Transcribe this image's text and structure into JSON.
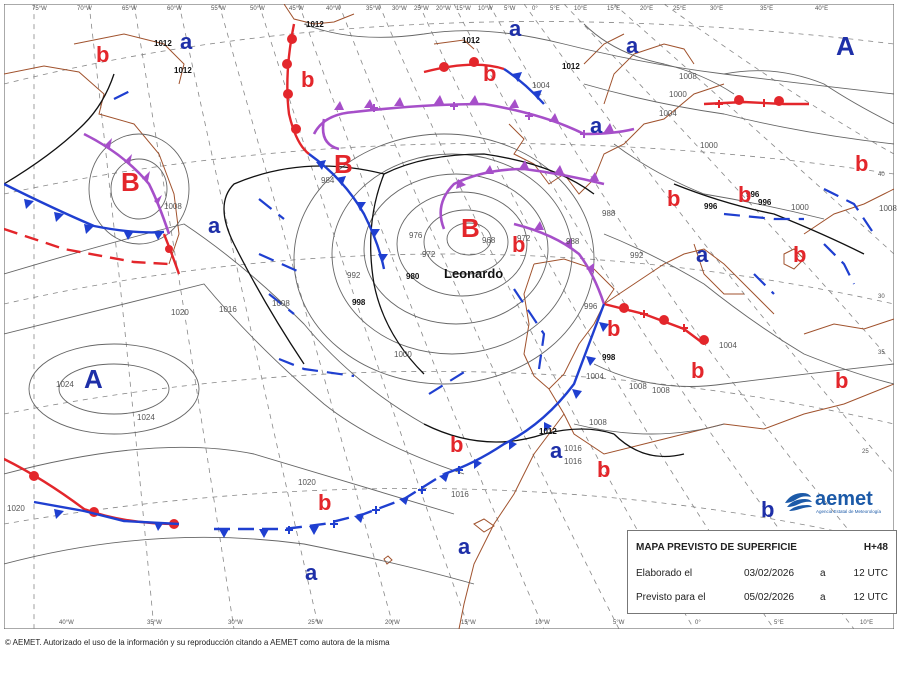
{
  "grid_labels": {
    "top": [
      "75°W",
      "70°W",
      "65°W",
      "60°W",
      "55°W",
      "50°W",
      "45°W",
      "40°W",
      "35°W",
      "30°W",
      "25°W",
      "20°W",
      "15°W",
      "10°W",
      "5°W",
      "0°",
      "5°E",
      "10°E",
      "15°E",
      "20°E",
      "25°E",
      "30°E",
      "35°E",
      "40°E"
    ],
    "bottom": [
      "40°W",
      "35°W",
      "30°W",
      "25°W",
      "20°W",
      "15°W",
      "10°W",
      "5°W",
      "0°",
      "5°E",
      "10°E"
    ],
    "right": [
      "40",
      "35",
      "30",
      "25"
    ]
  },
  "isobars": [
    "1012",
    "1012",
    "1012",
    "1012",
    "1012",
    "1004",
    "1008",
    "1000",
    "1000",
    "1004",
    "1008",
    "1008",
    "988",
    "984",
    "976",
    "972",
    "968",
    "972",
    "980",
    "992",
    "996",
    "996",
    "996",
    "1000",
    "1000",
    "1008",
    "1016",
    "1020",
    "1024",
    "1024",
    "1020",
    "1016",
    "1012",
    "1016",
    "1004",
    "1008",
    "1004",
    "1008",
    "1016",
    "1020",
    "998",
    "998",
    "988",
    "992",
    "996",
    "1008"
  ],
  "pressure_centers": [
    {
      "label": "A",
      "kind": "high",
      "size": "big"
    },
    {
      "label": "A",
      "kind": "high",
      "size": "big"
    },
    {
      "label": "B",
      "kind": "low",
      "size": "big"
    },
    {
      "label": "B",
      "kind": "low",
      "size": "big"
    },
    {
      "label": "B",
      "kind": "low",
      "size": "big"
    },
    {
      "label": "a",
      "kind": "high",
      "size": "small"
    },
    {
      "label": "a",
      "kind": "high",
      "size": "small"
    },
    {
      "label": "a",
      "kind": "high",
      "size": "small"
    },
    {
      "label": "a",
      "kind": "high",
      "size": "small"
    },
    {
      "label": "a",
      "kind": "high",
      "size": "small"
    },
    {
      "label": "a",
      "kind": "high",
      "size": "small"
    },
    {
      "label": "a",
      "kind": "high",
      "size": "small"
    },
    {
      "label": "a",
      "kind": "high",
      "size": "small"
    },
    {
      "label": "a",
      "kind": "high",
      "size": "small"
    },
    {
      "label": "b",
      "kind": "low",
      "size": "small"
    },
    {
      "label": "b",
      "kind": "low",
      "size": "small"
    },
    {
      "label": "b",
      "kind": "low",
      "size": "small"
    },
    {
      "label": "b",
      "kind": "low",
      "size": "small"
    },
    {
      "label": "b",
      "kind": "low",
      "size": "small"
    },
    {
      "label": "b",
      "kind": "low",
      "size": "small"
    },
    {
      "label": "b",
      "kind": "low",
      "size": "small"
    },
    {
      "label": "b",
      "kind": "low",
      "size": "small"
    },
    {
      "label": "b",
      "kind": "low",
      "size": "small"
    },
    {
      "label": "b",
      "kind": "low",
      "size": "small"
    },
    {
      "label": "b",
      "kind": "low",
      "size": "small"
    },
    {
      "label": "b",
      "kind": "low",
      "size": "small"
    },
    {
      "label": "b",
      "kind": "low",
      "size": "small"
    },
    {
      "label": "b",
      "kind": "low",
      "size": "small"
    },
    {
      "label": "b",
      "kind": "low",
      "size": "small"
    }
  ],
  "storm_name": "Leonardo",
  "info_box": {
    "title": "MAPA PREVISTO DE SUPERFICIE",
    "step": "H+48",
    "issued_label": "Elaborado el",
    "issued_date": "03/02/2026",
    "issued_sep": "a",
    "issued_time": "12 UTC",
    "valid_label": "Previsto para el",
    "valid_date": "05/02/2026",
    "valid_sep": "a",
    "valid_time": "12 UTC"
  },
  "logo": {
    "name": "aemet",
    "subtitle": "Agencia Estatal de Meteorología"
  },
  "copyright": "© AEMET. Autorizado el uso de la información y su reproducción citando a AEMET como autora de la misma",
  "colors": {
    "high": "#1e2fa8",
    "low": "#e3262b",
    "occluded": "#a64fc9",
    "cold_front": "#1f3fd0",
    "warm_front": "#e3262b",
    "coast": "#a0522d",
    "isobar": "#555555",
    "grid": "#888888"
  }
}
